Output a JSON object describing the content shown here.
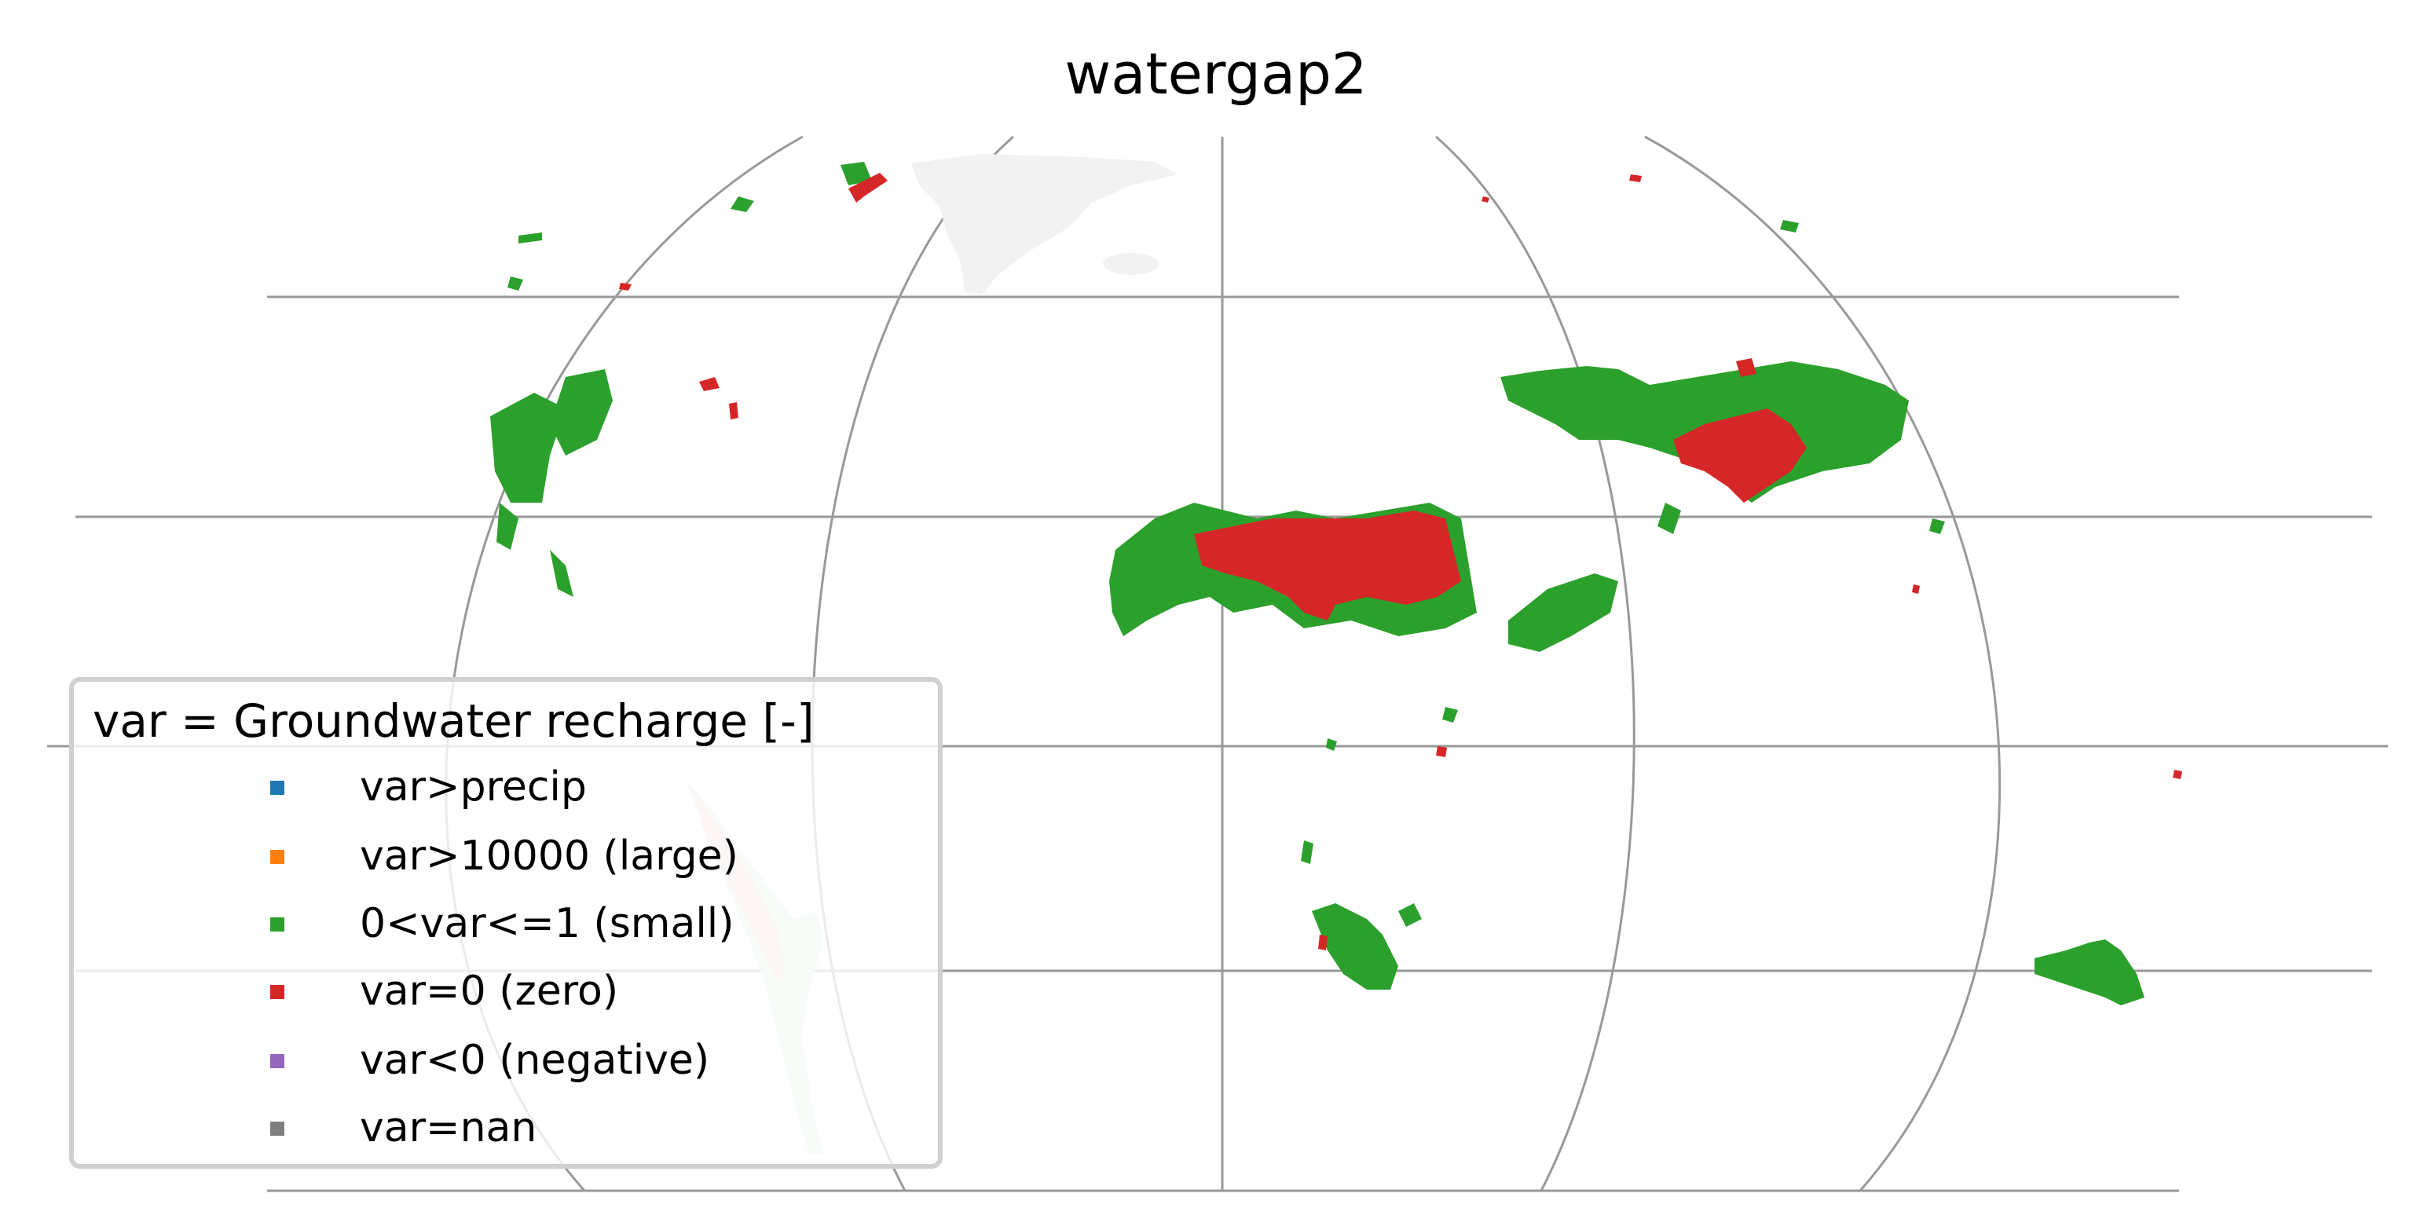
{
  "title": "watergap2",
  "legend": {
    "title": "var = Groundwater recharge [-]",
    "items": [
      {
        "label": "var>precip",
        "color": "#1f77b4"
      },
      {
        "label": "var>10000 (large)",
        "color": "#ff7f0e"
      },
      {
        "label": "0<var<=1 (small)",
        "color": "#2ca02c"
      },
      {
        "label": "var=0 (zero)",
        "color": "#d62728"
      },
      {
        "label": "var<0 (negative)",
        "color": "#9467bd"
      },
      {
        "label": "var=nan",
        "color": "#7f7f7f"
      }
    ]
  },
  "colors": {
    "gridline": "#999999",
    "landmass": "#f2f2f2",
    "small": "#2ca02c",
    "zero": "#d62728"
  }
}
